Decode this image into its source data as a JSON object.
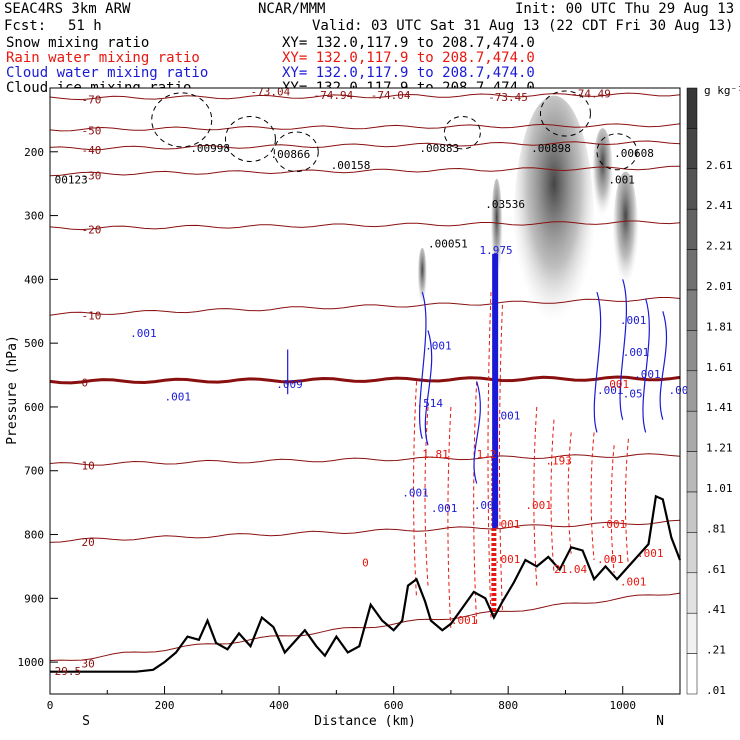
{
  "header": {
    "model": "SEAC4RS  3km ARW",
    "org": "NCAR/MMM",
    "init": "Init: 00 UTC Thu 29 Aug 13",
    "fcst_label": "Fcst:",
    "fcst_value": "51 h",
    "valid": "Valid: 03 UTC Sat 31 Aug 13 (22 CDT Fri 30 Aug 13)"
  },
  "legend": [
    {
      "name": "Snow mixing ratio",
      "color": "#000000",
      "xy": "XY= 132.0,117.9 to 208.7,474.0"
    },
    {
      "name": "Rain water mixing ratio",
      "color": "#e8170f",
      "xy": "XY= 132.0,117.9 to 208.7,474.0"
    },
    {
      "name": "Cloud water mixing ratio",
      "color": "#1a1ad6",
      "xy": "XY= 132.0,117.9 to 208.7,474.0"
    },
    {
      "name": "Cloud ice mixing ratio",
      "color": "#000000",
      "xy": "XY= 132.0,117.9 to 208.7,474.0"
    }
  ],
  "colorbar": {
    "unit": "g kg⁻¹",
    "levels": [
      "2.61",
      "2.41",
      "2.21",
      "2.01",
      "1.81",
      "1.61",
      "1.41",
      "1.21",
      "1.01",
      ".81",
      ".61",
      ".41",
      ".21",
      ".01"
    ]
  },
  "chart_data": {
    "type": "cross-section",
    "xlabel": "Distance (km)",
    "ylabel": "Pressure (hPa)",
    "xlim": [
      0,
      1100
    ],
    "ylim": [
      1050,
      100
    ],
    "x_ticks": [
      0,
      200,
      400,
      600,
      800,
      1000
    ],
    "y_ticks": [
      200,
      300,
      400,
      500,
      600,
      700,
      800,
      900,
      1000
    ],
    "end_labels": {
      "left": "S",
      "right": "N"
    },
    "temperature_isotherms_C": [
      {
        "value": -70,
        "pressure_left": 116,
        "pressure_right": 110
      },
      {
        "value": -50,
        "pressure_left": 165,
        "pressure_right": 158
      },
      {
        "value": -40,
        "pressure_left": 195,
        "pressure_right": 185
      },
      {
        "value": -30,
        "pressure_left": 235,
        "pressure_right": 225
      },
      {
        "value": -20,
        "pressure_left": 320,
        "pressure_right": 310
      },
      {
        "value": -10,
        "pressure_left": 455,
        "pressure_right": 430
      },
      {
        "value": 0,
        "pressure_left": 560,
        "pressure_right": 555
      },
      {
        "value": 10,
        "pressure_left": 690,
        "pressure_right": 675
      },
      {
        "value": 20,
        "pressure_left": 810,
        "pressure_right": 780
      },
      {
        "value": 30,
        "pressure_left": 1000,
        "pressure_right": 890
      }
    ],
    "terrain": [
      [
        0,
        1015
      ],
      [
        150,
        1015
      ],
      [
        180,
        1012
      ],
      [
        200,
        1000
      ],
      [
        220,
        985
      ],
      [
        240,
        960
      ],
      [
        260,
        965
      ],
      [
        275,
        935
      ],
      [
        290,
        970
      ],
      [
        310,
        980
      ],
      [
        330,
        955
      ],
      [
        350,
        975
      ],
      [
        370,
        930
      ],
      [
        390,
        945
      ],
      [
        410,
        985
      ],
      [
        425,
        970
      ],
      [
        445,
        950
      ],
      [
        465,
        975
      ],
      [
        480,
        990
      ],
      [
        500,
        960
      ],
      [
        520,
        985
      ],
      [
        540,
        975
      ],
      [
        560,
        910
      ],
      [
        580,
        935
      ],
      [
        600,
        950
      ],
      [
        615,
        935
      ],
      [
        625,
        880
      ],
      [
        640,
        870
      ],
      [
        655,
        905
      ],
      [
        665,
        935
      ],
      [
        685,
        950
      ],
      [
        700,
        940
      ],
      [
        720,
        915
      ],
      [
        740,
        890
      ],
      [
        760,
        900
      ],
      [
        775,
        930
      ],
      [
        790,
        905
      ],
      [
        810,
        875
      ],
      [
        830,
        840
      ],
      [
        850,
        850
      ],
      [
        870,
        835
      ],
      [
        890,
        855
      ],
      [
        910,
        820
      ],
      [
        930,
        825
      ],
      [
        950,
        870
      ],
      [
        970,
        850
      ],
      [
        990,
        870
      ],
      [
        1010,
        850
      ],
      [
        1030,
        830
      ],
      [
        1045,
        815
      ],
      [
        1058,
        740
      ],
      [
        1070,
        745
      ],
      [
        1085,
        805
      ],
      [
        1100,
        840
      ]
    ],
    "annotations": [
      {
        "text": "-73.04",
        "x": 350,
        "p": 112,
        "color": "#8a1010"
      },
      {
        "text": "-74.94",
        "x": 460,
        "p": 117,
        "color": "#8a1010"
      },
      {
        "text": "-74.04",
        "x": 560,
        "p": 117,
        "color": "#8a1010"
      },
      {
        "text": "-73.45",
        "x": 765,
        "p": 120,
        "color": "#8a1010"
      },
      {
        "text": "-74.49",
        "x": 910,
        "p": 115,
        "color": "#8a1010"
      },
      {
        "text": ".00998",
        "x": 245,
        "p": 200,
        "color": "#000000"
      },
      {
        "text": ".00866",
        "x": 385,
        "p": 210,
        "color": "#000000"
      },
      {
        "text": ".00158",
        "x": 490,
        "p": 227,
        "color": "#000000"
      },
      {
        "text": ".00883",
        "x": 645,
        "p": 200,
        "color": "#000000"
      },
      {
        "text": ".00898",
        "x": 840,
        "p": 200,
        "color": "#000000"
      },
      {
        "text": ".00608",
        "x": 985,
        "p": 208,
        "color": "#000000"
      },
      {
        "text": "00123",
        "x": 8,
        "p": 250,
        "color": "#000000"
      },
      {
        "text": ".03536",
        "x": 760,
        "p": 288,
        "color": "#000000"
      },
      {
        "text": ".00051",
        "x": 660,
        "p": 350,
        "color": "#000000"
      },
      {
        "text": "1.975",
        "x": 750,
        "p": 360,
        "color": "#1a1ad6"
      },
      {
        "text": ".001",
        "x": 975,
        "p": 250,
        "color": "#000000"
      },
      {
        "text": ".001",
        "x": 140,
        "p": 490,
        "color": "#1a1ad6"
      },
      {
        "text": ".009",
        "x": 395,
        "p": 570,
        "color": "#1a1ad6"
      },
      {
        "text": ".001",
        "x": 200,
        "p": 590,
        "color": "#1a1ad6"
      },
      {
        "text": ".001",
        "x": 655,
        "p": 510,
        "color": "#1a1ad6"
      },
      {
        "text": ".514",
        "x": 640,
        "p": 600,
        "color": "#1a1ad6"
      },
      {
        "text": "1.81",
        "x": 650,
        "p": 680,
        "color": "#e8170f"
      },
      {
        "text": ".001",
        "x": 615,
        "p": 740,
        "color": "#1a1ad6"
      },
      {
        "text": ".001",
        "x": 665,
        "p": 765,
        "color": "#1a1ad6"
      },
      {
        "text": "1.2",
        "x": 745,
        "p": 680,
        "color": "#e8170f"
      },
      {
        "text": ".00",
        "x": 740,
        "p": 760,
        "color": "#1a1ad6"
      },
      {
        "text": ".001",
        "x": 775,
        "p": 620,
        "color": "#1a1ad6"
      },
      {
        "text": ".193",
        "x": 865,
        "p": 690,
        "color": "#e8170f"
      },
      {
        "text": ".001",
        "x": 830,
        "p": 760,
        "color": "#e8170f"
      },
      {
        "text": ".001",
        "x": 775,
        "p": 790,
        "color": "#e8170f"
      },
      {
        "text": ".001",
        "x": 775,
        "p": 845,
        "color": "#e8170f"
      },
      {
        "text": "21.04",
        "x": 880,
        "p": 860,
        "color": "#e8170f"
      },
      {
        "text": ".001",
        "x": 955,
        "p": 845,
        "color": "#e8170f"
      },
      {
        "text": ".001",
        "x": 1025,
        "p": 835,
        "color": "#e8170f"
      },
      {
        "text": ".001",
        "x": 995,
        "p": 880,
        "color": "#e8170f"
      },
      {
        "text": ".001",
        "x": 700,
        "p": 940,
        "color": "#e8170f"
      },
      {
        "text": ".001",
        "x": 960,
        "p": 790,
        "color": "#e8170f"
      },
      {
        "text": ".001",
        "x": 995,
        "p": 470,
        "color": "#1a1ad6"
      },
      {
        "text": ".001",
        "x": 1000,
        "p": 520,
        "color": "#1a1ad6"
      },
      {
        "text": ".05",
        "x": 1000,
        "p": 585,
        "color": "#1a1ad6"
      },
      {
        "text": ".001",
        "x": 1020,
        "p": 555,
        "color": "#1a1ad6"
      },
      {
        "text": ".001",
        "x": 955,
        "p": 580,
        "color": "#1a1ad6"
      },
      {
        "text": ".001",
        "x": 965,
        "p": 570,
        "color": "#e8170f"
      },
      {
        "text": ".00",
        "x": 1080,
        "p": 580,
        "color": "#1a1ad6"
      },
      {
        "text": "29.5",
        "x": 8,
        "p": 1020,
        "color": "#8a1010"
      },
      {
        "text": "0",
        "x": 545,
        "p": 850,
        "color": "#e8170f"
      }
    ]
  }
}
